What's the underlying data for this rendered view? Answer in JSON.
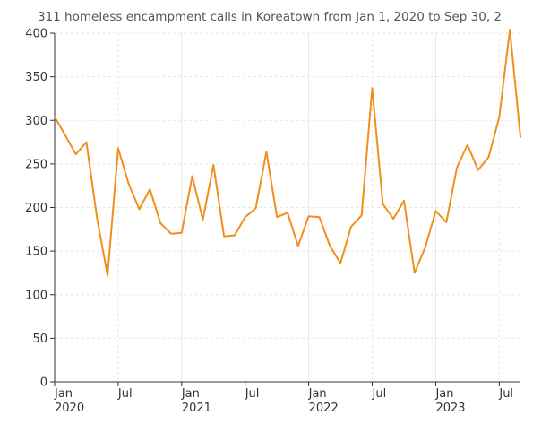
{
  "chart_data": {
    "type": "line",
    "title": "311 homeless encampment calls in Koreatown from Jan 1, 2020 to Sep 30, 2",
    "xlabel": "",
    "ylabel": "",
    "ylim": [
      0,
      400
    ],
    "yticks": [
      0,
      50,
      100,
      150,
      200,
      250,
      300,
      350,
      400
    ],
    "xticks": [
      {
        "date": "2020-01",
        "label": "Jan",
        "year": "2020"
      },
      {
        "date": "2020-07",
        "label": "Jul",
        "year": ""
      },
      {
        "date": "2021-01",
        "label": "Jan",
        "year": "2021"
      },
      {
        "date": "2021-07",
        "label": "Jul",
        "year": ""
      },
      {
        "date": "2022-01",
        "label": "Jan",
        "year": "2022"
      },
      {
        "date": "2022-07",
        "label": "Jul",
        "year": ""
      },
      {
        "date": "2023-01",
        "label": "Jan",
        "year": "2023"
      },
      {
        "date": "2023-07",
        "label": "Jul",
        "year": ""
      }
    ],
    "grid": true,
    "colors": {
      "line": "#f28e1c"
    },
    "series": [
      {
        "name": "",
        "x": [
          "2020-01",
          "2020-02",
          "2020-03",
          "2020-04",
          "2020-05",
          "2020-06",
          "2020-07",
          "2020-08",
          "2020-09",
          "2020-10",
          "2020-11",
          "2020-12",
          "2021-01",
          "2021-02",
          "2021-03",
          "2021-04",
          "2021-05",
          "2021-06",
          "2021-07",
          "2021-08",
          "2021-09",
          "2021-10",
          "2021-11",
          "2021-12",
          "2022-01",
          "2022-02",
          "2022-03",
          "2022-04",
          "2022-05",
          "2022-06",
          "2022-07",
          "2022-08",
          "2022-09",
          "2022-10",
          "2022-11",
          "2022-12",
          "2023-01",
          "2023-02",
          "2023-03",
          "2023-04",
          "2023-05",
          "2023-06",
          "2023-07",
          "2023-08",
          "2023-09"
        ],
        "values": [
          304,
          283,
          261,
          275,
          188,
          122,
          268,
          227,
          198,
          221,
          182,
          170,
          171,
          236,
          186,
          249,
          167,
          168,
          189,
          199,
          264,
          189,
          194,
          156,
          190,
          189,
          156,
          136,
          178,
          191,
          337,
          204,
          187,
          208,
          125,
          154,
          196,
          183,
          246,
          272,
          243,
          258,
          304,
          404,
          281
        ]
      }
    ]
  }
}
